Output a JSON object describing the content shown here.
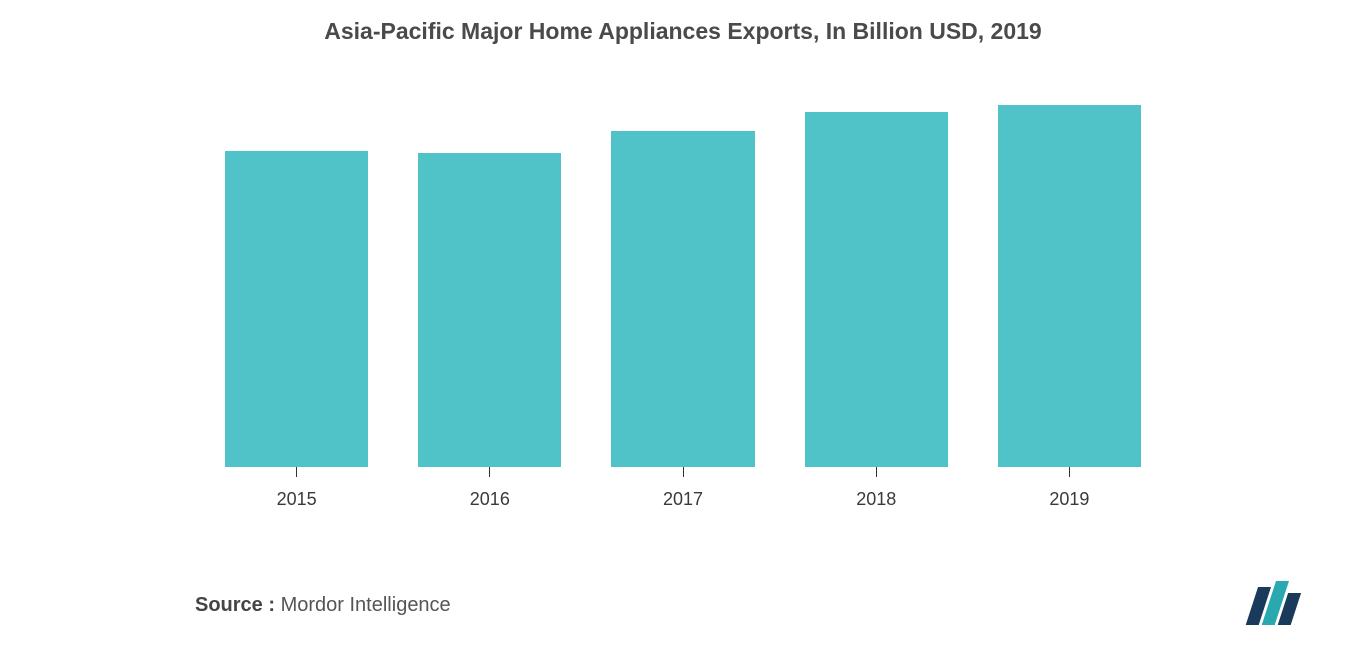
{
  "chart": {
    "type": "bar",
    "title": "Asia-Pacific Major Home Appliances Exports, In Billion USD, 2019",
    "title_fontsize": 23,
    "title_color": "#4a4a4a",
    "categories": [
      "2015",
      "2016",
      "2017",
      "2018",
      "2019"
    ],
    "values": [
      340,
      338,
      362,
      382,
      390
    ],
    "ylim": [
      0,
      420
    ],
    "bar_color": "#4fc3c7",
    "bar_width_ratio": 0.72,
    "background_color": "#ffffff",
    "xlabel_fontsize": 18,
    "xlabel_color": "#3a3a3a"
  },
  "source": {
    "label": "Source :",
    "text": "Mordor Intelligence",
    "fontsize": 20
  },
  "logo": {
    "name": "mordor-logo",
    "bar1_color": "#1a3a5c",
    "bar2_color": "#2aa8b0",
    "bar3_color": "#1a3a5c"
  }
}
